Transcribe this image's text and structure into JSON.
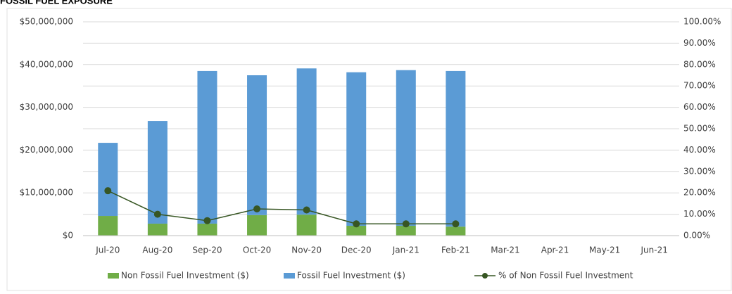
{
  "chart_data": {
    "type": "bar",
    "title": "FOSSIL FUEL EXPOSURE",
    "categories": [
      "Jul-20",
      "Aug-20",
      "Sep-20",
      "Oct-20",
      "Nov-20",
      "Dec-20",
      "Jan-21",
      "Feb-21",
      "Mar-21",
      "Apr-21",
      "May-21",
      "Jun-21"
    ],
    "series": [
      {
        "name": "Non Fossil Fuel Investment ($)",
        "color": "#70ad47",
        "stacked": true,
        "values": [
          4600000,
          2800000,
          2800000,
          4800000,
          4900000,
          2300000,
          2300000,
          2100000,
          null,
          null,
          null,
          null
        ]
      },
      {
        "name": "Fossil Fuel Investment ($)",
        "color": "#5b9bd5",
        "stacked": true,
        "values": [
          17100000,
          24000000,
          35700000,
          32700000,
          34200000,
          35900000,
          36400000,
          36400000,
          null,
          null,
          null,
          null
        ]
      },
      {
        "name": "% of Non Fossil Fuel Investment",
        "color": "#375623",
        "type": "line",
        "axis": "y2",
        "values": [
          21,
          10,
          7,
          12.5,
          12,
          5.5,
          5.5,
          5.5,
          null,
          null,
          null,
          null
        ]
      }
    ],
    "ylim": [
      0,
      50000000
    ],
    "yticks": [
      {
        "value": 0,
        "label": "$0"
      },
      {
        "value": 10000000,
        "label": "$10,000,000"
      },
      {
        "value": 20000000,
        "label": "$20,000,000"
      },
      {
        "value": 30000000,
        "label": "$30,000,000"
      },
      {
        "value": 40000000,
        "label": "$40,000,000"
      },
      {
        "value": 50000000,
        "label": "$50,000,000"
      }
    ],
    "y2lim": [
      0,
      100
    ],
    "y2ticks": [
      {
        "value": 0,
        "label": "0.00%"
      },
      {
        "value": 10,
        "label": "10.00%"
      },
      {
        "value": 20,
        "label": "20.00%"
      },
      {
        "value": 30,
        "label": "30.00%"
      },
      {
        "value": 40,
        "label": "40.00%"
      },
      {
        "value": 50,
        "label": "50.00%"
      },
      {
        "value": 60,
        "label": "60.00%"
      },
      {
        "value": 70,
        "label": "70.00%"
      },
      {
        "value": 80,
        "label": "80.00%"
      },
      {
        "value": 90,
        "label": "90.00%"
      },
      {
        "value": 100,
        "label": "100.00%"
      }
    ],
    "grid": true,
    "legend": "bottom"
  }
}
